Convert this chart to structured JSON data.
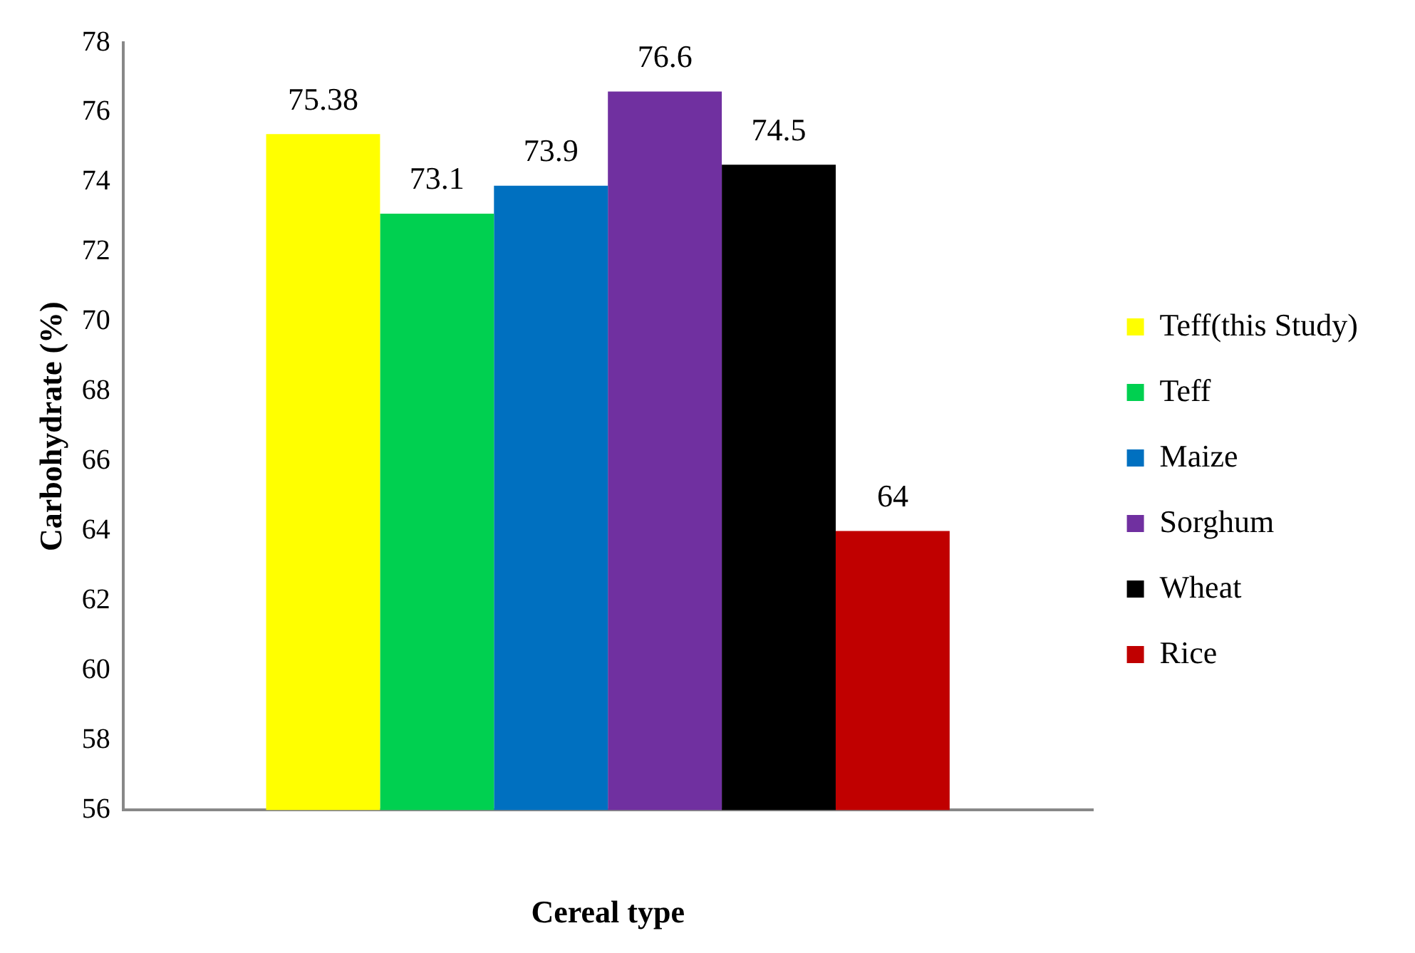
{
  "chart_data": {
    "type": "bar",
    "xlabel": "Cereal type",
    "ylabel": "Carbohydrate (%)",
    "categories": [
      null
    ],
    "series": [
      {
        "name": "Teff(this Study)",
        "color": "#ffff00",
        "values": [
          75.38
        ]
      },
      {
        "name": "Teff",
        "color": "#00d050",
        "values": [
          73.1
        ]
      },
      {
        "name": "Maize",
        "color": "#0070c0",
        "values": [
          73.9
        ]
      },
      {
        "name": "Sorghum",
        "color": "#7030a0",
        "values": [
          76.6
        ]
      },
      {
        "name": "Wheat",
        "color": "#000000",
        "values": [
          74.5
        ]
      },
      {
        "name": "Rice",
        "color": "#c00000",
        "values": [
          64
        ]
      }
    ],
    "ylim": [
      56,
      78
    ],
    "yticks": [
      56,
      58,
      60,
      62,
      64,
      66,
      68,
      70,
      72,
      74,
      76,
      78
    ],
    "grid": false,
    "legend": "right",
    "data_labels": true
  }
}
